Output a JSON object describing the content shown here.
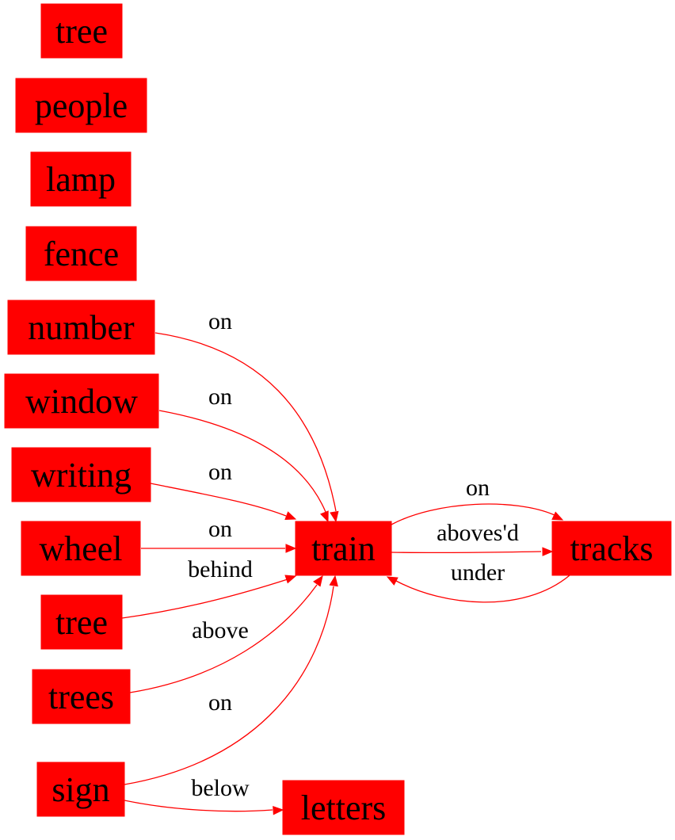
{
  "colors": {
    "node_fill": "#ff0000",
    "edge": "#ff0000",
    "text": "#000000"
  },
  "nodes": [
    {
      "id": "tree_top",
      "label": "tree"
    },
    {
      "id": "people",
      "label": "people"
    },
    {
      "id": "lamp",
      "label": "lamp"
    },
    {
      "id": "fence",
      "label": "fence"
    },
    {
      "id": "number",
      "label": "number"
    },
    {
      "id": "window",
      "label": "window"
    },
    {
      "id": "writing",
      "label": "writing"
    },
    {
      "id": "wheel",
      "label": "wheel"
    },
    {
      "id": "tree_mid",
      "label": "tree"
    },
    {
      "id": "trees",
      "label": "trees"
    },
    {
      "id": "sign",
      "label": "sign"
    },
    {
      "id": "train",
      "label": "train"
    },
    {
      "id": "tracks",
      "label": "tracks"
    },
    {
      "id": "letters",
      "label": "letters"
    }
  ],
  "edges": [
    {
      "from": "number",
      "to": "train",
      "label": "on"
    },
    {
      "from": "window",
      "to": "train",
      "label": "on"
    },
    {
      "from": "writing",
      "to": "train",
      "label": "on"
    },
    {
      "from": "wheel",
      "to": "train",
      "label": "on"
    },
    {
      "from": "tree_mid",
      "to": "train",
      "label": "behind"
    },
    {
      "from": "trees",
      "to": "train",
      "label": "above"
    },
    {
      "from": "sign",
      "to": "train",
      "label": "on"
    },
    {
      "from": "sign",
      "to": "letters",
      "label": "below"
    },
    {
      "from": "train",
      "to": "tracks",
      "label": "on"
    },
    {
      "from": "train",
      "to": "tracks",
      "label": "aboves'd"
    },
    {
      "from": "tracks",
      "to": "train",
      "label": "under"
    }
  ]
}
